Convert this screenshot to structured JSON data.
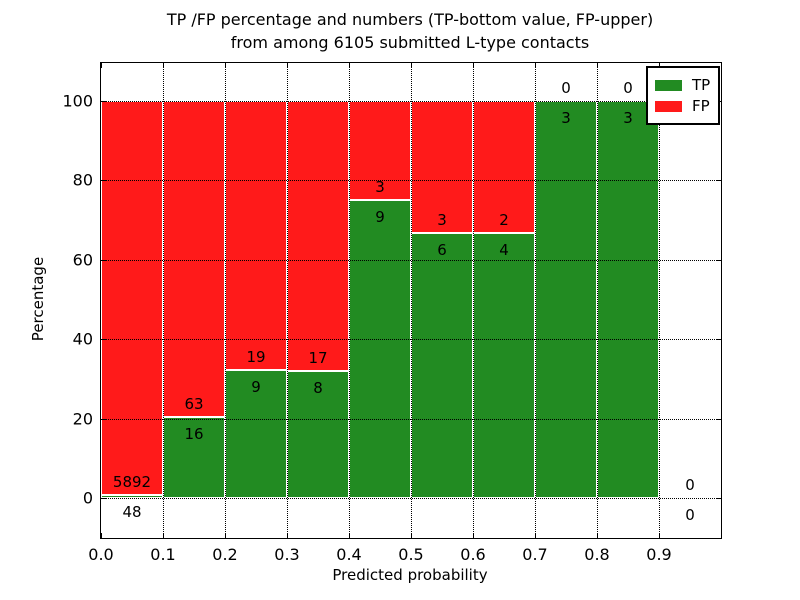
{
  "figure": {
    "title_line1": "TP /FP percentage and numbers (TP-bottom value, FP-upper)",
    "title_line2": "from among 6105 submitted L-type contacts",
    "xlabel": "Predicted probability",
    "ylabel": "Percentage"
  },
  "legend": {
    "items": [
      {
        "label": "TP",
        "color": "#228b22"
      },
      {
        "label": "FP",
        "color": "#ff1a1a"
      }
    ]
  },
  "chart_data": {
    "type": "bar",
    "stacked": true,
    "title": "TP /FP percentage and numbers (TP-bottom value, FP-upper) from among 6105 submitted L-type contacts",
    "xlabel": "Predicted probability",
    "ylabel": "Percentage",
    "total_contacts": 6105,
    "xlim": [
      0.0,
      1.0
    ],
    "ylim": [
      -10.0,
      109.5
    ],
    "grid": "dotted",
    "legend_position": "upper right",
    "bin_edges": [
      0.0,
      0.1,
      0.2,
      0.3,
      0.4,
      0.5,
      0.6,
      0.7,
      0.8,
      0.9,
      1.0
    ],
    "xtick_labels": [
      "0.0",
      "0.1",
      "0.2",
      "0.3",
      "0.4",
      "0.5",
      "0.6",
      "0.7",
      "0.8",
      "0.9"
    ],
    "ytick_values": [
      0,
      20,
      40,
      60,
      80,
      100
    ],
    "series": [
      {
        "name": "TP",
        "color": "#228b22",
        "counts": [
          48,
          16,
          9,
          8,
          9,
          6,
          4,
          3,
          3,
          0
        ]
      },
      {
        "name": "FP",
        "color": "#ff1a1a",
        "counts": [
          5892,
          63,
          19,
          17,
          3,
          3,
          2,
          0,
          0,
          0
        ]
      }
    ],
    "tp_percent_per_bin": [
      0.81,
      20.25,
      32.14,
      32.0,
      75.0,
      66.67,
      66.67,
      100.0,
      100.0,
      0.0
    ]
  }
}
